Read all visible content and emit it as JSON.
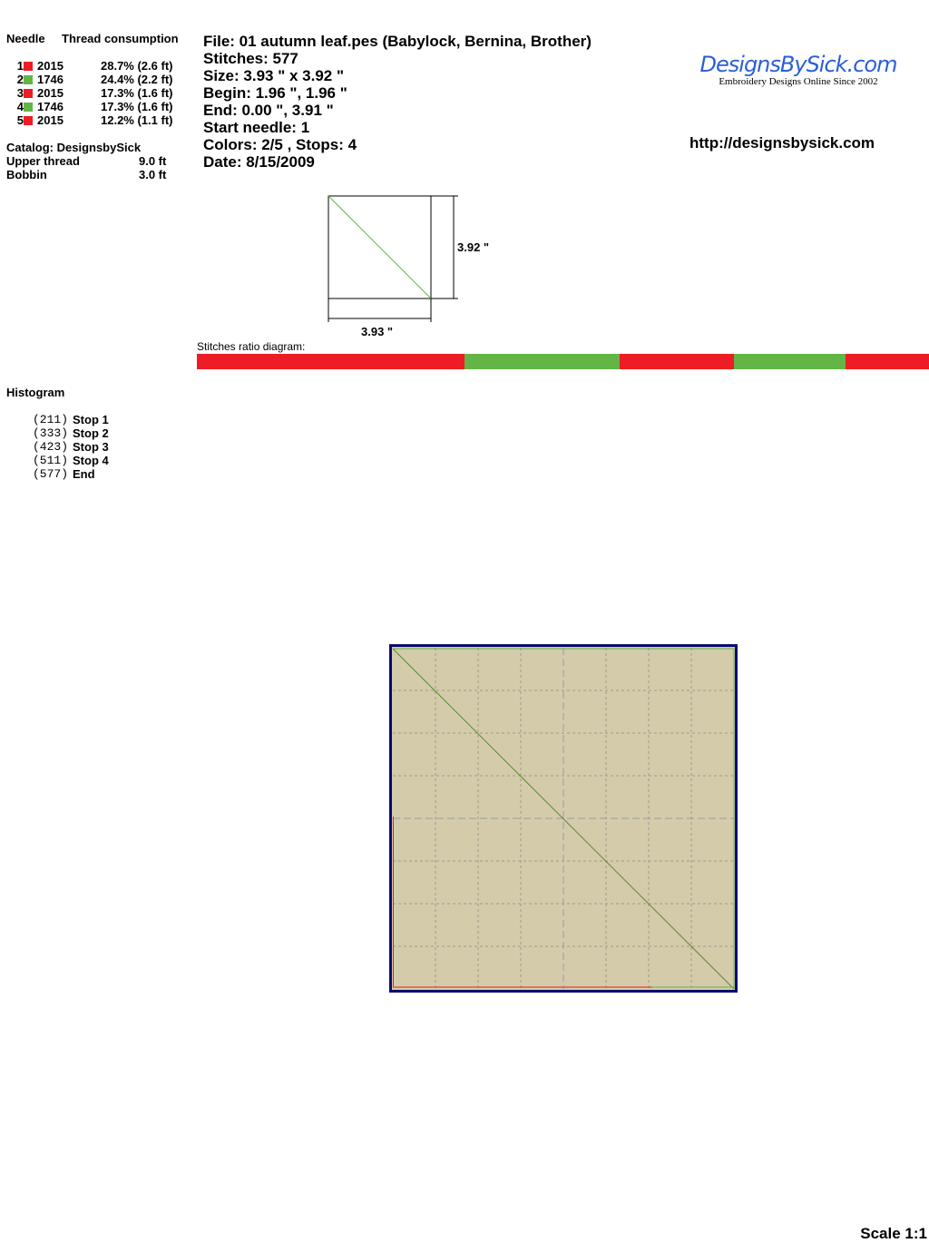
{
  "left": {
    "header_needle": "Needle",
    "header_thread": "Thread consumption",
    "needles": [
      {
        "num": "1",
        "color": "#ee1c24",
        "code": "2015",
        "consumption": "28.7% (2.6 ft)"
      },
      {
        "num": "2",
        "color": "#63b546",
        "code": "1746",
        "consumption": "24.4% (2.2 ft)"
      },
      {
        "num": "3",
        "color": "#ee1c24",
        "code": "2015",
        "consumption": "17.3% (1.6 ft)"
      },
      {
        "num": "4",
        "color": "#63b546",
        "code": "1746",
        "consumption": "17.3% (1.6 ft)"
      },
      {
        "num": "5",
        "color": "#ee1c24",
        "code": "2015",
        "consumption": "12.2% (1.1 ft)"
      }
    ],
    "catalog": "Catalog: DesignsbySick",
    "upper_label": "Upper thread",
    "upper_value": "9.0 ft",
    "bobbin_label": "Bobbin",
    "bobbin_value": "3.0 ft",
    "histogram_title": "Histogram",
    "histogram": [
      {
        "count": "(211)",
        "label": "Stop 1"
      },
      {
        "count": "(333)",
        "label": "Stop 2"
      },
      {
        "count": "(423)",
        "label": "Stop 3"
      },
      {
        "count": "(511)",
        "label": "Stop 4"
      },
      {
        "count": "(577)",
        "label": "End"
      }
    ]
  },
  "info": {
    "file": "File: 01 autumn leaf.pes  (Babylock, Bernina, Brother)",
    "stitches": "Stitches: 577",
    "size": "Size: 3.93 \" x 3.92 \"",
    "begin": "Begin: 1.96 \", 1.96 \"",
    "end": "End: 0.00 \", 3.91 \"",
    "start_needle": "Start needle: 1",
    "colors": "Colors: 2/5 , Stops: 4",
    "date": "Date: 8/15/2009"
  },
  "logo": {
    "text": "DesignsBySick.com",
    "tagline": "Embroidery Designs Online Since 2002"
  },
  "url": "http://designsbysick.com",
  "dims": {
    "height": "3.92 \"",
    "width": "3.93 \""
  },
  "ratio_label": "Stitches ratio diagram:",
  "ratio_segments": [
    {
      "stitches": 211,
      "color": "#ee1c24"
    },
    {
      "stitches": 122,
      "color": "#63b546"
    },
    {
      "stitches": 90,
      "color": "#ee1c24"
    },
    {
      "stitches": 88,
      "color": "#63b546"
    },
    {
      "stitches": 66,
      "color": "#ee1c24"
    }
  ],
  "canvas": {
    "background": "#d4cbab",
    "border": "#0a0a6e"
  },
  "scale": "Scale 1:1"
}
